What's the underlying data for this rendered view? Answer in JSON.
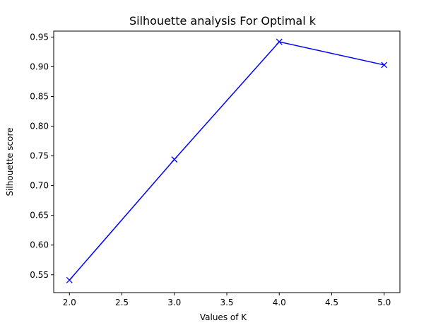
{
  "chart_data": {
    "type": "line",
    "title": "Silhouette analysis For Optimal k",
    "xlabel": "Values of K",
    "ylabel": "Silhouette score",
    "xlim": [
      1.85,
      5.15
    ],
    "ylim": [
      0.52,
      0.96
    ],
    "xticks": [
      "2.0",
      "2.5",
      "3.0",
      "3.5",
      "4.0",
      "4.5",
      "5.0"
    ],
    "yticks": [
      "0.55",
      "0.60",
      "0.65",
      "0.70",
      "0.75",
      "0.80",
      "0.85",
      "0.90",
      "0.95"
    ],
    "grid": false,
    "legend": "none",
    "series": [
      {
        "color": "#0000ff",
        "marker": "x",
        "x": [
          2,
          3,
          4,
          5
        ],
        "y": [
          0.541,
          0.744,
          0.942,
          0.903
        ]
      }
    ]
  }
}
